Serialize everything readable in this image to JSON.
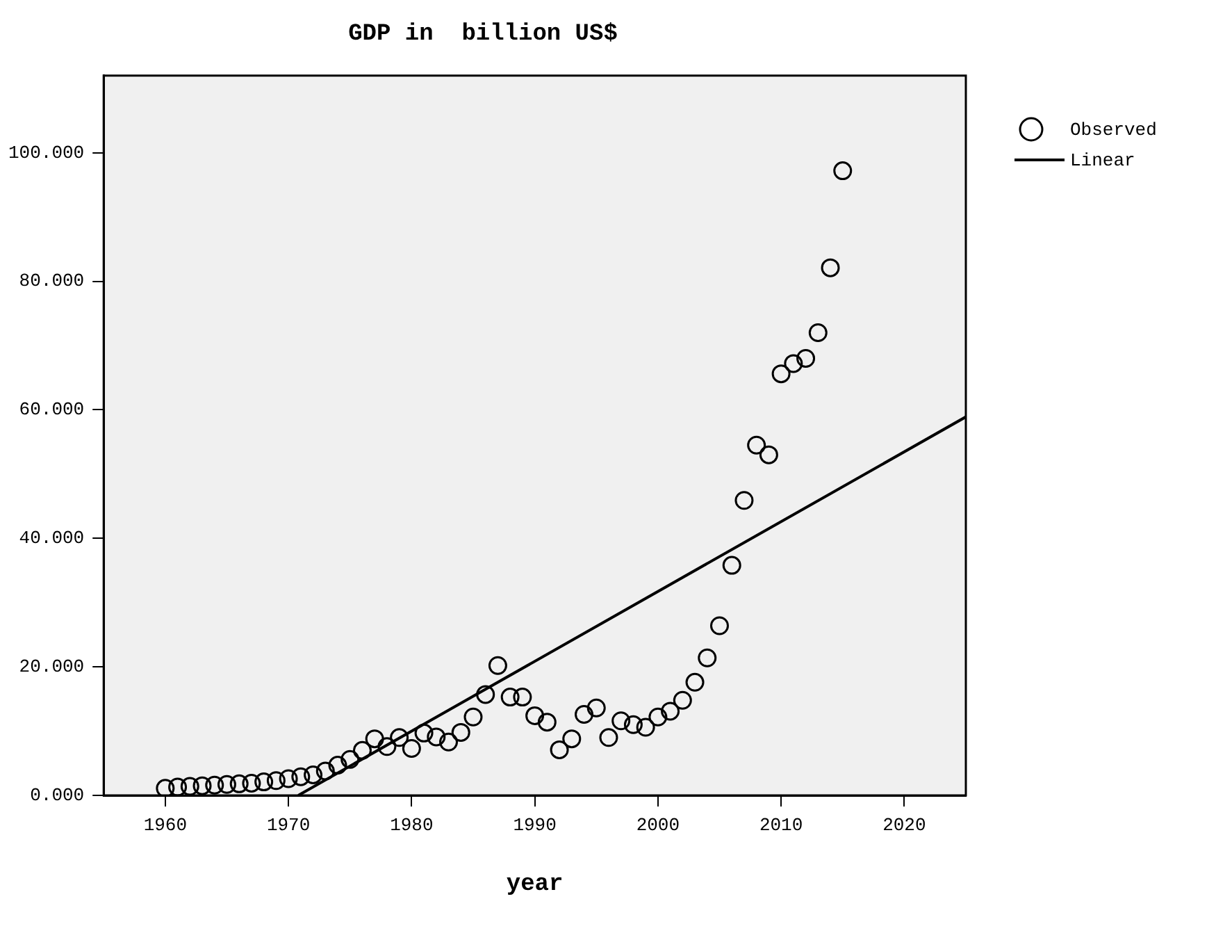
{
  "chart_data": {
    "type": "scatter",
    "title": "GDP in  billion US$",
    "xlabel": "year",
    "xlim": [
      1955,
      2025
    ],
    "xticks": [
      1960,
      1970,
      1980,
      1990,
      2000,
      2010,
      2020
    ],
    "ylim": [
      0,
      112
    ],
    "yticks": [
      {
        "value": 0,
        "label": "0.000"
      },
      {
        "value": 20,
        "label": "20.000"
      },
      {
        "value": 40,
        "label": "40.000"
      },
      {
        "value": 60,
        "label": "60.000"
      },
      {
        "value": 80,
        "label": "80.000"
      },
      {
        "value": 100,
        "label": "100.000"
      }
    ],
    "grid": false,
    "legend": "top right",
    "series": [
      {
        "name": "Observed",
        "marker": "circle",
        "color": "#000000",
        "x": [
          1960,
          1961,
          1962,
          1963,
          1964,
          1965,
          1966,
          1967,
          1968,
          1969,
          1970,
          1971,
          1972,
          1973,
          1974,
          1975,
          1976,
          1977,
          1978,
          1979,
          1980,
          1981,
          1982,
          1983,
          1984,
          1985,
          1986,
          1987,
          1988,
          1989,
          1990,
          1991,
          1992,
          1993,
          1994,
          1995,
          1996,
          1997,
          1998,
          1999,
          2000,
          2001,
          2002,
          2003,
          2004,
          2005,
          2006,
          2007,
          2008,
          2009,
          2010,
          2011,
          2012,
          2013,
          2014,
          2015
        ],
        "values": [
          1.1,
          1.3,
          1.4,
          1.5,
          1.6,
          1.7,
          1.8,
          1.9,
          2.1,
          2.3,
          2.6,
          2.9,
          3.2,
          3.8,
          4.7,
          5.6,
          7.0,
          8.8,
          7.6,
          9.0,
          7.3,
          9.7,
          9.1,
          8.3,
          9.8,
          12.2,
          15.7,
          20.2,
          15.3,
          15.3,
          12.4,
          11.4,
          7.1,
          8.8,
          12.6,
          13.6,
          9.0,
          11.6,
          11.0,
          10.6,
          12.2,
          13.1,
          14.8,
          17.6,
          21.4,
          26.4,
          35.8,
          45.9,
          54.5,
          53.0,
          65.6,
          67.2,
          68.0,
          72.0,
          82.1,
          97.2
        ]
      },
      {
        "name": "Linear",
        "type": "line",
        "marker": "none",
        "line_style": "solid",
        "color": "#000000",
        "x": [
          1970.8,
          2025
        ],
        "values": [
          0,
          58.9
        ]
      }
    ]
  }
}
